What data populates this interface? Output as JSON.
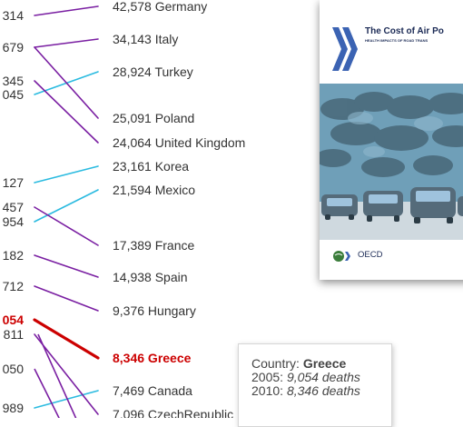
{
  "chart_data": {
    "type": "slope",
    "start_label": "2005",
    "end_label": "2010",
    "series_colors": {
      "decline": "#7a1fa2",
      "increase": "#2bbbe0",
      "highlight": "#cc0000"
    },
    "series": [
      {
        "country": "Germany",
        "v2005": "…314",
        "v2010": 42578,
        "end_text": "42,578 Germany",
        "trend": "decline"
      },
      {
        "country": "Italy",
        "v2005": "…679",
        "v2010": 34143,
        "end_text": "34,143 Italy",
        "trend": "decline"
      },
      {
        "country": "Turkey",
        "v2005": "…045",
        "v2010": 28924,
        "end_text": "28,924 Turkey",
        "trend": "increase"
      },
      {
        "country": "Poland",
        "v2005": "…345",
        "v2010": 25091,
        "end_text": "25,091 Poland",
        "trend": "decline"
      },
      {
        "country": "United Kingdom",
        "v2005": "",
        "v2010": 24064,
        "end_text": "24,064 United Kingdom",
        "trend": "decline"
      },
      {
        "country": "Korea",
        "v2005": "…127",
        "v2010": 23161,
        "end_text": "23,161 Korea",
        "trend": "increase"
      },
      {
        "country": "Mexico",
        "v2005": "…954",
        "v2010": 21594,
        "end_text": "21,594 Mexico",
        "trend": "increase"
      },
      {
        "country": "France",
        "v2005": "…457",
        "v2010": 17389,
        "end_text": "17,389 France",
        "trend": "decline"
      },
      {
        "country": "Spain",
        "v2005": "…182",
        "v2010": 14938,
        "end_text": "14,938 Spain",
        "trend": "decline"
      },
      {
        "country": "Hungary",
        "v2005": "…712",
        "v2010": 9376,
        "end_text": "9,376 Hungary",
        "trend": "decline"
      },
      {
        "country": "Greece",
        "v2005": 9054,
        "v2010": 8346,
        "end_text": "8,346 Greece",
        "trend": "highlight"
      },
      {
        "country": "Canada",
        "v2005": "…989",
        "v2010": 7469,
        "end_text": "7,469 Canada",
        "trend": "increase"
      },
      {
        "country": "CzechRepublic",
        "v2005": "",
        "v2010": 7096,
        "end_text": "7,096 CzechRepublic",
        "trend": "decline"
      }
    ],
    "left_labels": [
      "314",
      "679",
      "345",
      "045",
      "127",
      "457",
      "954",
      "182",
      "712",
      "054",
      "811",
      "050",
      "989"
    ],
    "tooltip": {
      "country_label": "Country:",
      "country": "Greece",
      "y1_label": "2005:",
      "y1_value": "9,054 deaths",
      "y2_label": "2010:",
      "y2_value": "8,346 deaths"
    }
  },
  "book": {
    "title": "The Cost of Air Po",
    "subtitle": "HEALTH IMPACTS OF ROAD TRANS",
    "publisher": "OECD",
    "colors": {
      "sky": "#6f9fb8",
      "text": "#1b2a55",
      "arrow": "#3b63b3"
    }
  }
}
